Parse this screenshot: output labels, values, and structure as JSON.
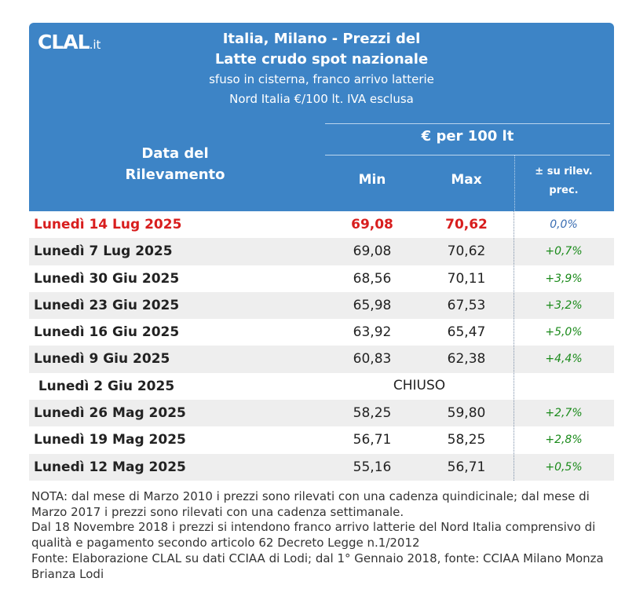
{
  "brand": {
    "logo_main": "CLAL",
    "logo_suffix": ".it"
  },
  "header": {
    "title_line1": "Italia, Milano - Prezzi del",
    "title_line2": "Latte crudo spot nazionale",
    "subtitle_line1": "sfuso in cisterna, franco arrivo latterie",
    "subtitle_line2": "Nord Italia €/100 lt. IVA esclusa"
  },
  "columns": {
    "date_line1": "Data del",
    "date_line2": "Rilevamento",
    "price_group": "€ per 100 lt",
    "min": "Min",
    "max": "Max",
    "change_line1": "± su rilev.",
    "change_line2": "prec."
  },
  "rows": [
    {
      "date": "Lunedì 14 Lug 2025",
      "min": "69,08",
      "max": "70,62",
      "change": "0,0%"
    },
    {
      "date": "Lunedì 7 Lug 2025",
      "min": "69,08",
      "max": "70,62",
      "change": "+0,7%"
    },
    {
      "date": "Lunedì 30 Giu 2025",
      "min": "68,56",
      "max": "70,11",
      "change": "+3,9%"
    },
    {
      "date": "Lunedì 23 Giu 2025",
      "min": "65,98",
      "max": "67,53",
      "change": "+3,2%"
    },
    {
      "date": "Lunedì 16 Giu 2025",
      "min": "63,92",
      "max": "65,47",
      "change": "+5,0%"
    },
    {
      "date": "Lunedì 9 Giu 2025",
      "min": "60,83",
      "max": "62,38",
      "change": "+4,4%"
    },
    {
      "date": "Lunedì 2 Giu 2025",
      "closed": "CHIUSO"
    },
    {
      "date": "Lunedì 26 Mag 2025",
      "min": "58,25",
      "max": "59,80",
      "change": "+2,7%"
    },
    {
      "date": "Lunedì 19 Mag 2025",
      "min": "56,71",
      "max": "58,25",
      "change": "+2,8%"
    },
    {
      "date": "Lunedì 12 Mag 2025",
      "min": "55,16",
      "max": "56,71",
      "change": "+0,5%"
    }
  ],
  "notes": {
    "line1": "NOTA: dal mese di Marzo 2010 i prezzi sono rilevati con una cadenza quindicinale; dal mese di Marzo 2017 i prezzi sono rilevati con una cadenza settimanale.",
    "line2": "Dal 18 Novembre 2018 i prezzi si intendono franco arrivo latterie del Nord Italia comprensivo di qualità e pagamento secondo articolo 62 Decreto Legge n.1/2012",
    "line3": "Fonte: Elaborazione CLAL su dati CCIAA di Lodi; dal 1° Gennaio 2018, fonte: CCIAA Milano Monza Brianza Lodi"
  },
  "colors": {
    "header_bg": "#3d84c6",
    "current_row": "#d81e1e",
    "positive_change": "#1a8a1a",
    "neutral_change": "#3a6db2",
    "row_shade": "#eeeeee"
  }
}
